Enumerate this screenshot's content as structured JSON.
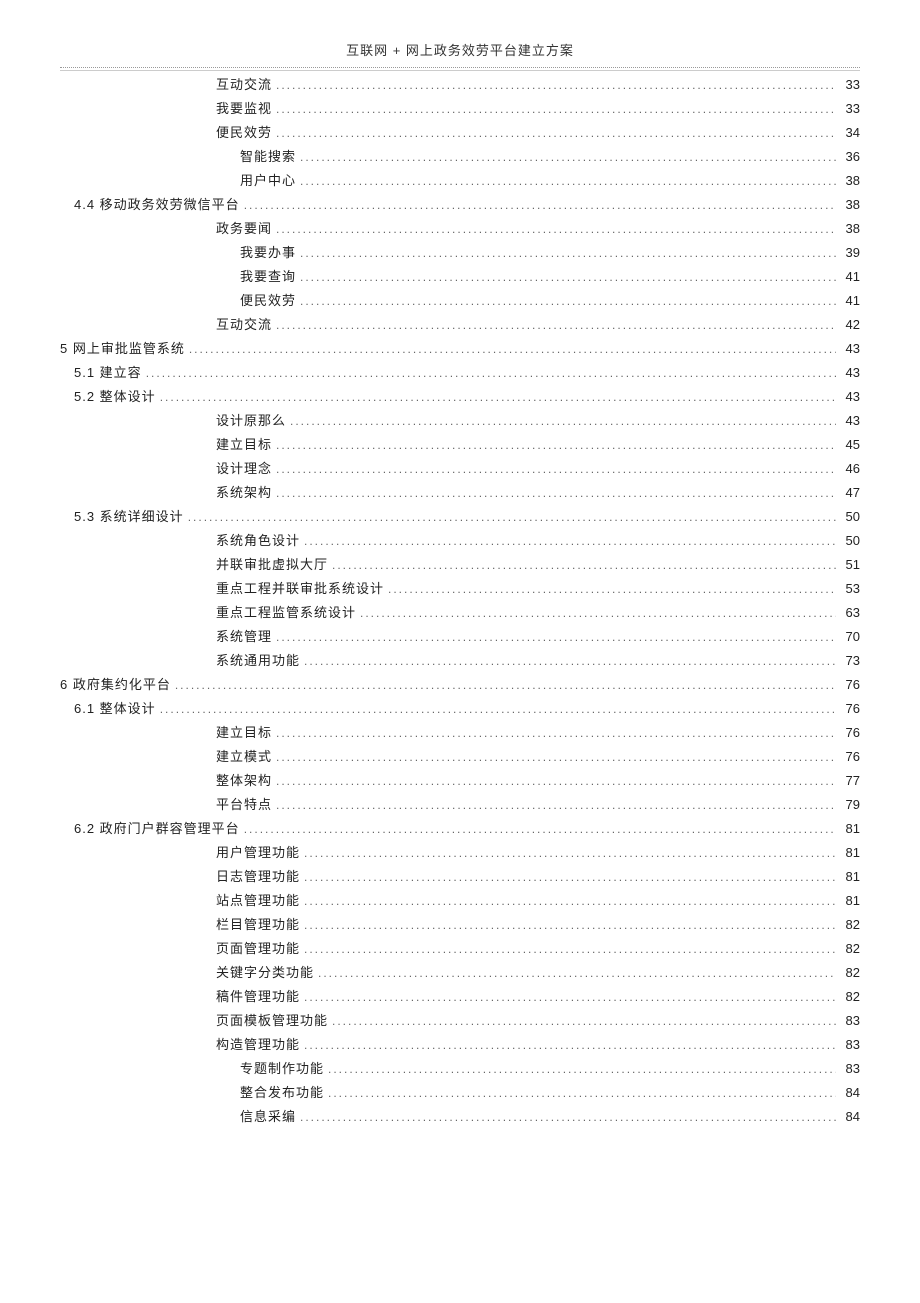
{
  "document": {
    "header_title": "互联网 + 网上政务效劳平台建立方案",
    "background_color": "#ffffff",
    "text_color": "#222222",
    "dot_color": "#666666",
    "font_family": "Microsoft YaHei",
    "base_fontsize": 13,
    "line_height": 24
  },
  "toc_entries": [
    {
      "label": "互动交流",
      "page": "33",
      "indent": 2
    },
    {
      "label": "我要监视",
      "page": "33",
      "indent": 2
    },
    {
      "label": "便民效劳",
      "page": "34",
      "indent": 2
    },
    {
      "label": "智能搜索",
      "page": "36",
      "indent": 3
    },
    {
      "label": "用户中心",
      "page": "38",
      "indent": 3
    },
    {
      "label": "4.4 移动政务效劳微信平台",
      "page": "38",
      "indent": 1
    },
    {
      "label": "政务要闻",
      "page": "38",
      "indent": 2
    },
    {
      "label": "我要办事",
      "page": "39",
      "indent": 3
    },
    {
      "label": "我要查询",
      "page": "41",
      "indent": 3
    },
    {
      "label": "便民效劳",
      "page": "41",
      "indent": 3
    },
    {
      "label": "互动交流",
      "page": "42",
      "indent": 2
    },
    {
      "label": "5 网上审批监管系统",
      "page": "43",
      "indent": 0
    },
    {
      "label": "5.1 建立容",
      "page": "43",
      "indent": 1
    },
    {
      "label": "5.2 整体设计",
      "page": "43",
      "indent": 1
    },
    {
      "label": "设计原那么",
      "page": "43",
      "indent": 2
    },
    {
      "label": "建立目标",
      "page": "45",
      "indent": 2
    },
    {
      "label": "设计理念",
      "page": "46",
      "indent": 2
    },
    {
      "label": "系统架构",
      "page": "47",
      "indent": 2
    },
    {
      "label": "5.3 系统详细设计",
      "page": "50",
      "indent": 1
    },
    {
      "label": "系统角色设计",
      "page": "50",
      "indent": 2
    },
    {
      "label": "并联审批虚拟大厅",
      "page": "51",
      "indent": 2
    },
    {
      "label": "重点工程并联审批系统设计",
      "page": "53",
      "indent": 2
    },
    {
      "label": "重点工程监管系统设计",
      "page": "63",
      "indent": 2
    },
    {
      "label": "系统管理",
      "page": "70",
      "indent": 2
    },
    {
      "label": "系统通用功能",
      "page": "73",
      "indent": 2
    },
    {
      "label": "6 政府集约化平台",
      "page": "76",
      "indent": 0
    },
    {
      "label": "6.1 整体设计",
      "page": "76",
      "indent": 1
    },
    {
      "label": "建立目标",
      "page": "76",
      "indent": 2
    },
    {
      "label": "建立模式",
      "page": "76",
      "indent": 2
    },
    {
      "label": "整体架构",
      "page": "77",
      "indent": 2
    },
    {
      "label": "平台特点",
      "page": "79",
      "indent": 2
    },
    {
      "label": "6.2 政府门户群容管理平台",
      "page": "81",
      "indent": 1
    },
    {
      "label": "用户管理功能",
      "page": "81",
      "indent": 2
    },
    {
      "label": "日志管理功能",
      "page": "81",
      "indent": 2
    },
    {
      "label": "站点管理功能",
      "page": "81",
      "indent": 2
    },
    {
      "label": "栏目管理功能",
      "page": "82",
      "indent": 2
    },
    {
      "label": "页面管理功能",
      "page": "82",
      "indent": 2
    },
    {
      "label": "关键字分类功能",
      "page": "82",
      "indent": 2
    },
    {
      "label": "稿件管理功能",
      "page": "82",
      "indent": 2
    },
    {
      "label": "页面模板管理功能",
      "page": "83",
      "indent": 2
    },
    {
      "label": "构造管理功能",
      "page": "83",
      "indent": 2
    },
    {
      "label": "专题制作功能",
      "page": "83",
      "indent": 3
    },
    {
      "label": "整合发布功能",
      "page": "84",
      "indent": 3
    },
    {
      "label": "信息采编",
      "page": "84",
      "indent": 3
    }
  ]
}
